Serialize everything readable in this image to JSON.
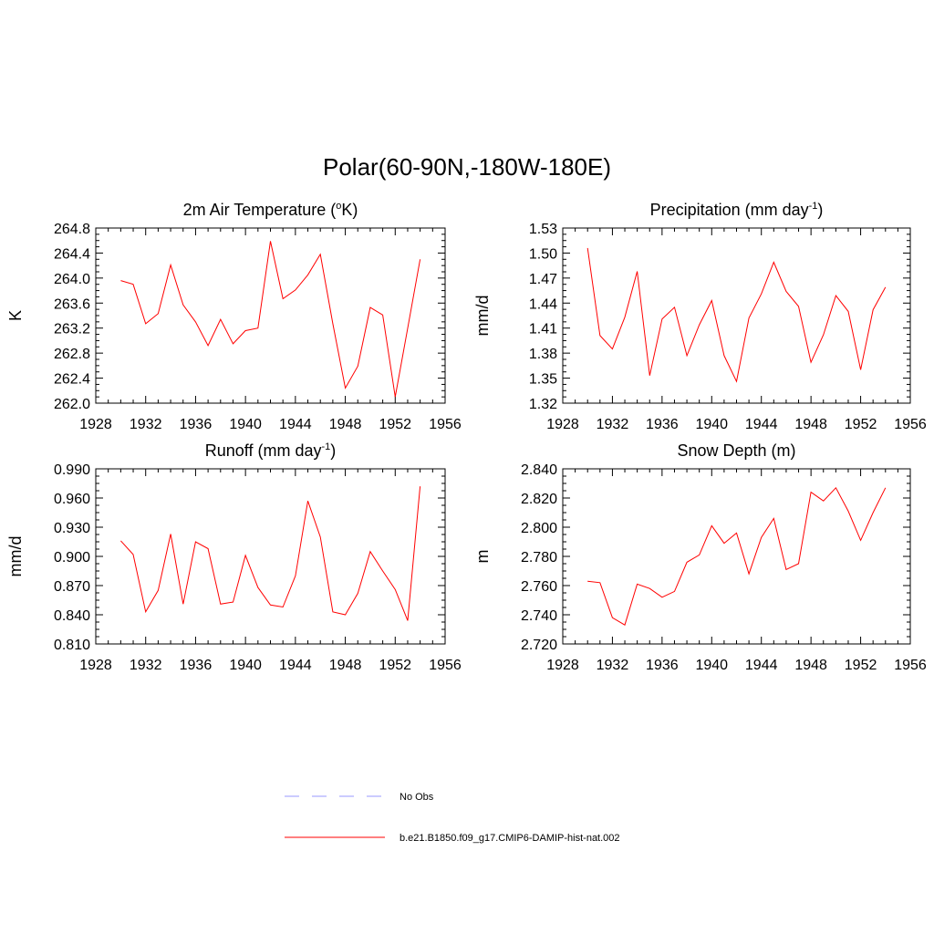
{
  "page": {
    "title": "Polar(60-90N,-180W-180E)"
  },
  "colors": {
    "model_line": "#ff0000",
    "obs_line": "#9999ff",
    "axis": "#000000"
  },
  "legend": {
    "placement": "bottom-center",
    "entries": [
      {
        "label": "No Obs",
        "style": "dashed",
        "color": "#9999ff"
      },
      {
        "label": "b.e21.B1850.f09_g17.CMIP6-DAMIP-hist-nat.002",
        "style": "solid",
        "color": "#ff0000"
      }
    ]
  },
  "chart_data": [
    {
      "type": "line",
      "title_main": "2m Air Temperature (",
      "title_super": "o",
      "title_after": "K)",
      "ylabel": "K",
      "xlim": [
        1928,
        1956
      ],
      "ylim": [
        262.0,
        264.8
      ],
      "xticks": [
        1928,
        1932,
        1936,
        1940,
        1944,
        1948,
        1952,
        1956
      ],
      "yticks": [
        "262.0",
        "262.4",
        "262.8",
        "263.2",
        "263.6",
        "264.0",
        "264.4",
        "264.8"
      ],
      "x": [
        1930,
        1931,
        1932,
        1933,
        1934,
        1935,
        1936,
        1937,
        1938,
        1939,
        1940,
        1941,
        1942,
        1943,
        1944,
        1945,
        1946,
        1947,
        1948,
        1949,
        1950,
        1951,
        1952,
        1953,
        1954
      ],
      "series": [
        {
          "values": [
            263.96,
            263.9,
            263.27,
            263.43,
            264.21,
            263.57,
            263.3,
            262.92,
            263.34,
            262.95,
            263.16,
            263.2,
            264.59,
            263.67,
            263.81,
            264.05,
            264.38,
            263.27,
            262.24,
            262.59,
            263.53,
            263.41,
            262.1,
            263.2,
            264.3
          ]
        }
      ]
    },
    {
      "type": "line",
      "title_main": "Precipitation (mm day",
      "title_super": "-1",
      "title_after": ")",
      "ylabel": "mm/d",
      "xlim": [
        1928,
        1956
      ],
      "ylim": [
        1.32,
        1.53
      ],
      "xticks": [
        1928,
        1932,
        1936,
        1940,
        1944,
        1948,
        1952,
        1956
      ],
      "yticks": [
        "1.32",
        "1.35",
        "1.38",
        "1.41",
        "1.44",
        "1.47",
        "1.50",
        "1.53"
      ],
      "x": [
        1930,
        1931,
        1932,
        1933,
        1934,
        1935,
        1936,
        1937,
        1938,
        1939,
        1940,
        1941,
        1942,
        1943,
        1944,
        1945,
        1946,
        1947,
        1948,
        1949,
        1950,
        1951,
        1952,
        1953,
        1954
      ],
      "series": [
        {
          "values": [
            1.506,
            1.401,
            1.385,
            1.423,
            1.478,
            1.353,
            1.421,
            1.435,
            1.377,
            1.414,
            1.443,
            1.377,
            1.346,
            1.422,
            1.451,
            1.489,
            1.454,
            1.436,
            1.369,
            1.402,
            1.449,
            1.43,
            1.36,
            1.432,
            1.459
          ]
        }
      ]
    },
    {
      "type": "line",
      "title_main": "Runoff (mm day",
      "title_super": "-1",
      "title_after": ")",
      "ylabel": "mm/d",
      "xlim": [
        1928,
        1956
      ],
      "ylim": [
        0.81,
        0.99
      ],
      "xticks": [
        1928,
        1932,
        1936,
        1940,
        1944,
        1948,
        1952,
        1956
      ],
      "yticks": [
        "0.810",
        "0.840",
        "0.870",
        "0.900",
        "0.930",
        "0.960",
        "0.990"
      ],
      "x": [
        1930,
        1931,
        1932,
        1933,
        1934,
        1935,
        1936,
        1937,
        1938,
        1939,
        1940,
        1941,
        1942,
        1943,
        1944,
        1945,
        1946,
        1947,
        1948,
        1949,
        1950,
        1951,
        1952,
        1953,
        1954
      ],
      "series": [
        {
          "values": [
            0.916,
            0.902,
            0.843,
            0.865,
            0.923,
            0.851,
            0.915,
            0.908,
            0.851,
            0.853,
            0.901,
            0.868,
            0.85,
            0.848,
            0.88,
            0.957,
            0.92,
            0.843,
            0.84,
            0.862,
            0.905,
            0.885,
            0.866,
            0.834,
            0.972
          ]
        }
      ]
    },
    {
      "type": "line",
      "title_main": "Snow Depth (m)",
      "title_super": "",
      "title_after": "",
      "ylabel": "m",
      "xlim": [
        1928,
        1956
      ],
      "ylim": [
        2.72,
        2.84
      ],
      "xticks": [
        1928,
        1932,
        1936,
        1940,
        1944,
        1948,
        1952,
        1956
      ],
      "yticks": [
        "2.720",
        "2.740",
        "2.760",
        "2.780",
        "2.800",
        "2.820",
        "2.840"
      ],
      "x": [
        1930,
        1931,
        1932,
        1933,
        1934,
        1935,
        1936,
        1937,
        1938,
        1939,
        1940,
        1941,
        1942,
        1943,
        1944,
        1945,
        1946,
        1947,
        1948,
        1949,
        1950,
        1951,
        1952,
        1953,
        1954
      ],
      "series": [
        {
          "values": [
            2.763,
            2.762,
            2.738,
            2.733,
            2.761,
            2.758,
            2.752,
            2.756,
            2.776,
            2.781,
            2.801,
            2.789,
            2.796,
            2.768,
            2.793,
            2.806,
            2.771,
            2.775,
            2.824,
            2.818,
            2.827,
            2.811,
            2.791,
            2.81,
            2.827
          ]
        }
      ]
    }
  ]
}
